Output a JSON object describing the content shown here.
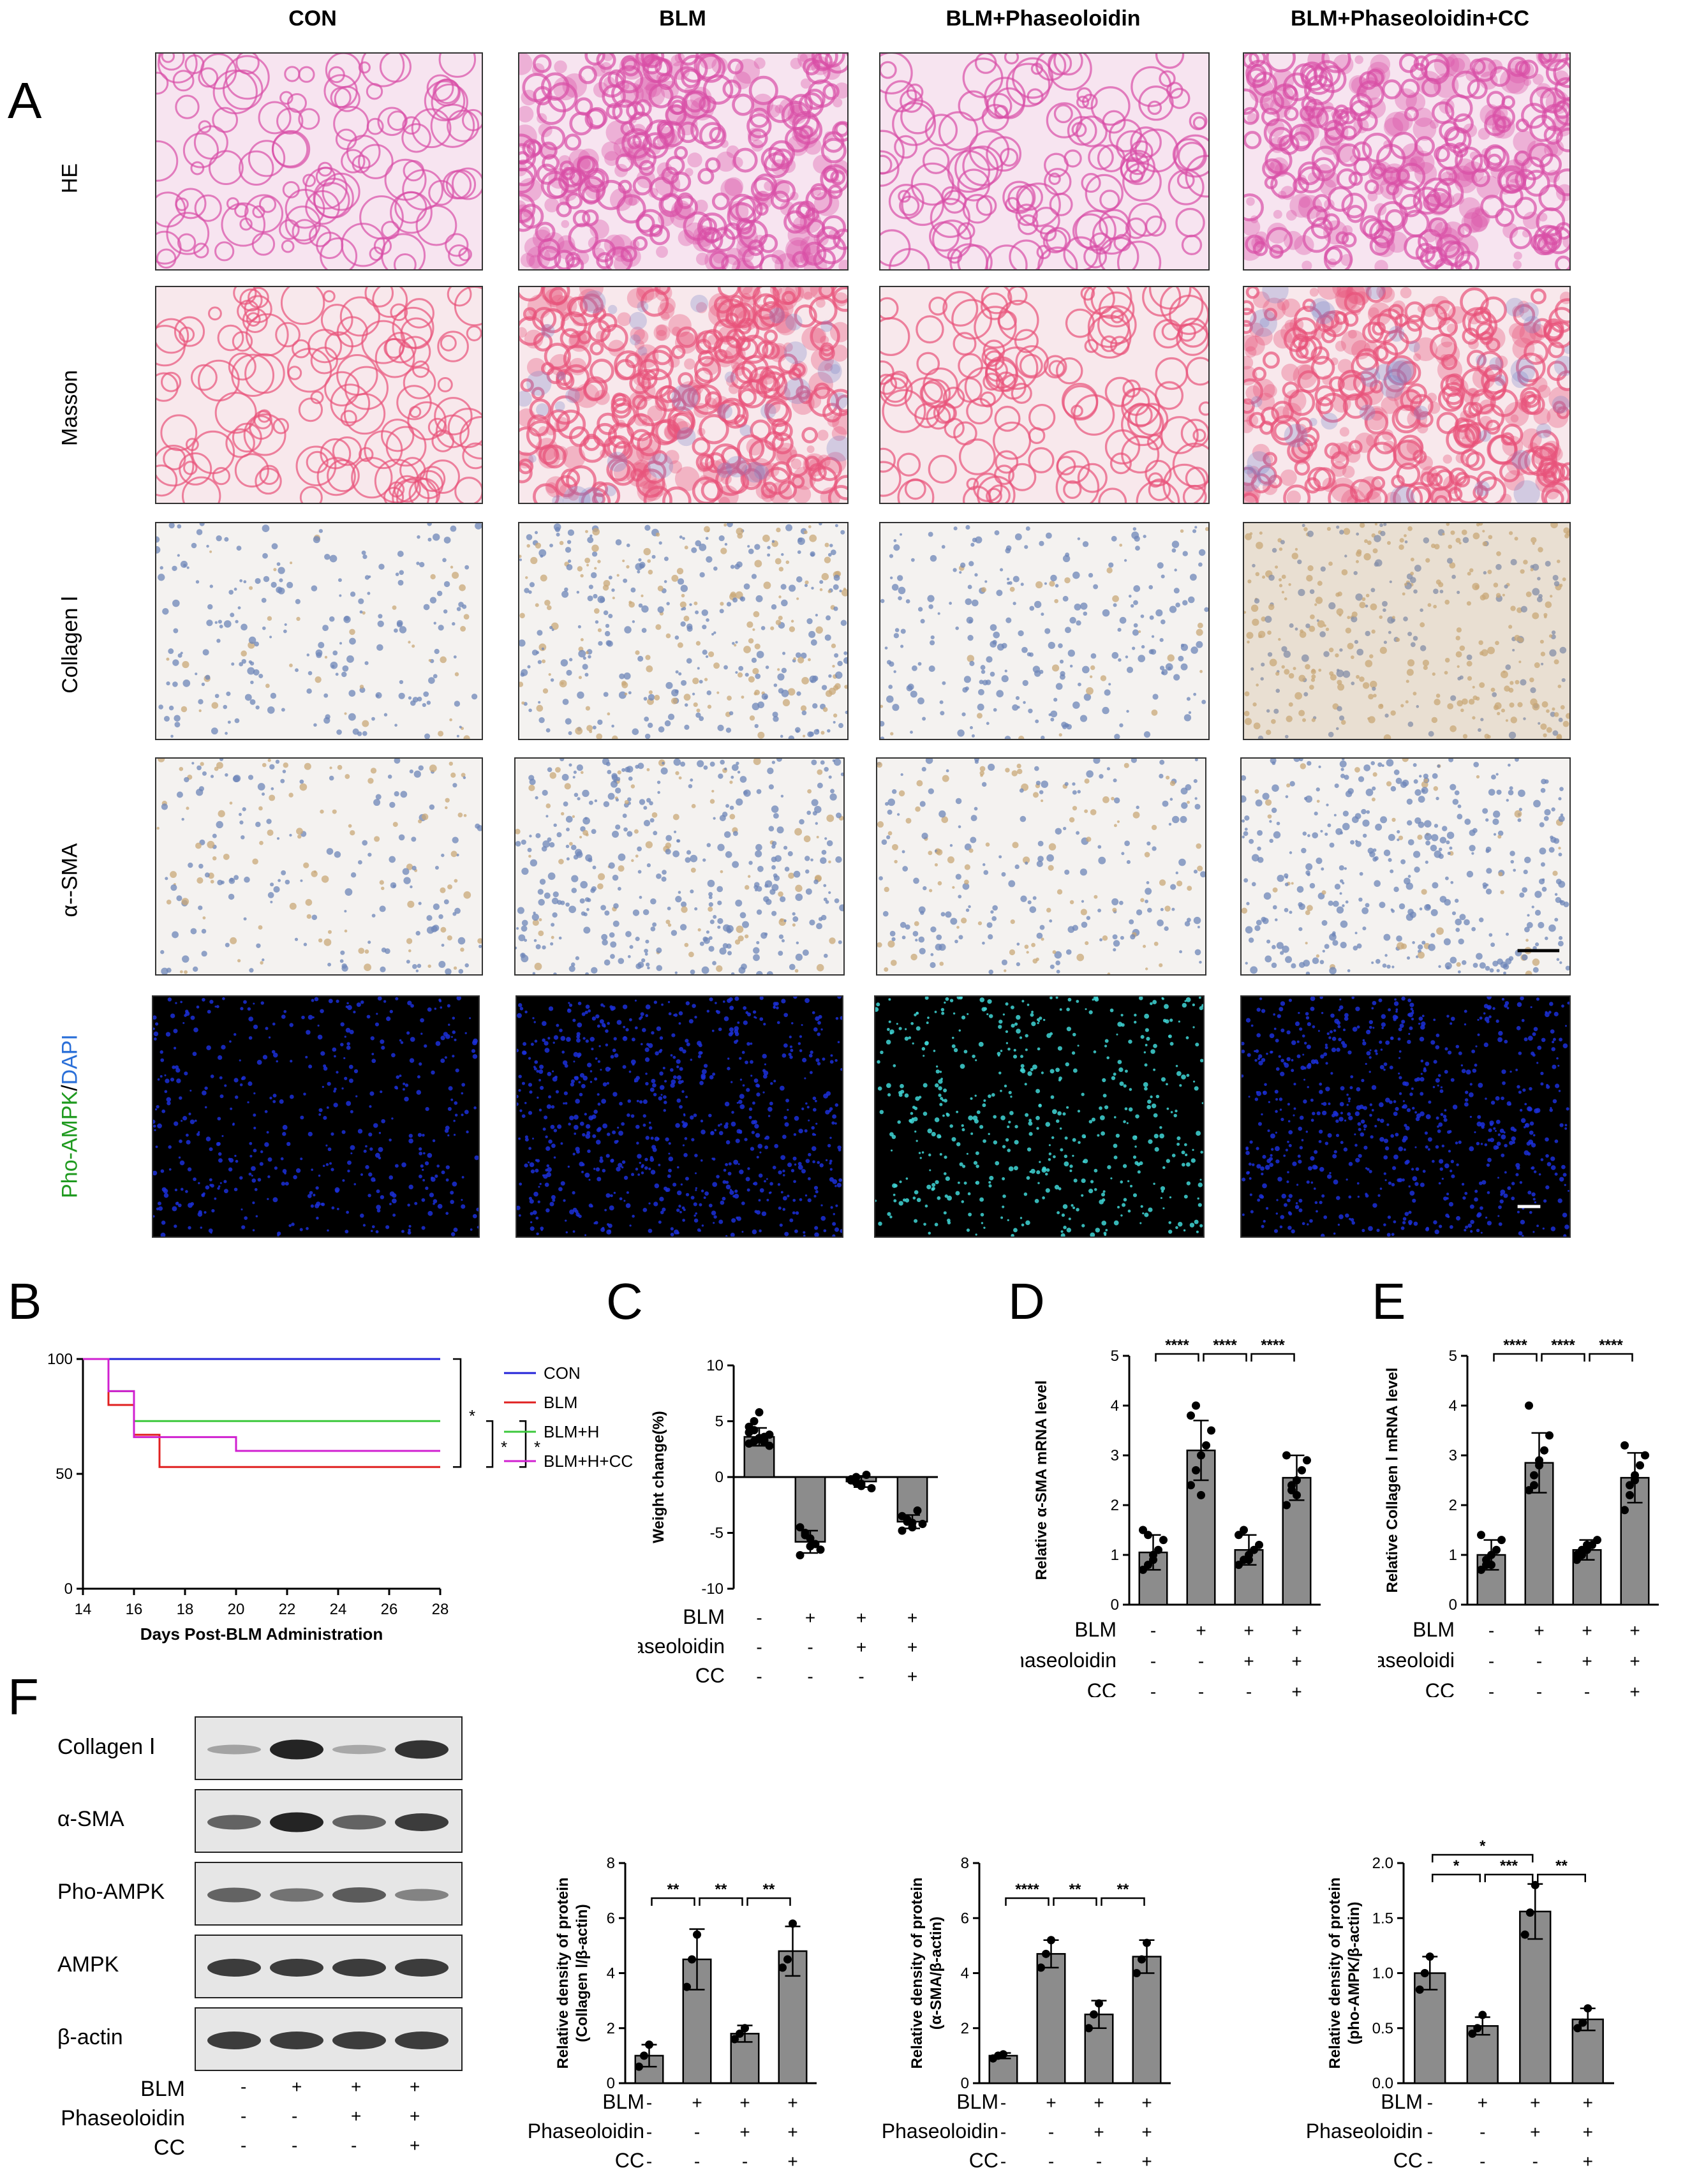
{
  "panelA": {
    "letter": "A",
    "columns": [
      "CON",
      "BLM",
      "BLM+Phaseoloidin",
      "BLM+Phaseoloidin+CC"
    ],
    "rows": [
      "HE",
      "Masson",
      "Collagen Ⅰ",
      "α--SMA"
    ],
    "fluor_label_green": "Pho-AMPK",
    "fluor_label_sep": "/",
    "fluor_label_blue": "DAPI",
    "colors": {
      "he_bg": "#f7e4f0",
      "he_tissue": "#d94fa6",
      "masson_bg": "#f8e8ec",
      "masson_tissue": "#e8537a",
      "masson_blue": "#7a86c6",
      "ihc_bg": "#f4f2f0",
      "ihc_nuclei": "#6d86b8",
      "ihc_brown": "#c9a878",
      "fluor_bg": "#000000",
      "fluor_blue": "#1b2fd8",
      "fluor_cyan": "#3fd6d6"
    }
  },
  "panelB": {
    "letter": "B",
    "xlabel": "Days Post-BLM Administration",
    "xticks": [
      "14",
      "16",
      "18",
      "20",
      "22",
      "24",
      "26",
      "28"
    ],
    "yticks": [
      "0",
      "50",
      "100"
    ],
    "xlim": [
      14,
      28
    ],
    "ylim": [
      0,
      100
    ],
    "legend": [
      {
        "name": "CON",
        "color": "#2323d8"
      },
      {
        "name": "BLM",
        "color": "#e02020"
      },
      {
        "name": "BLM+H",
        "color": "#3cc83c"
      },
      {
        "name": "BLM+H+CC",
        "color": "#d020d0"
      }
    ],
    "sig": [
      "*",
      "*",
      "*"
    ]
  },
  "panelC": {
    "letter": "C",
    "ylabel": "Weight change(%)",
    "yticks": [
      "-10",
      "-5",
      "0",
      "5",
      "10"
    ]
  },
  "panelD": {
    "letter": "D",
    "ylabel": "Relative α-SMA mRNA level",
    "yticks": [
      "0",
      "1",
      "2",
      "3",
      "4",
      "5"
    ],
    "sig": [
      "****",
      "****",
      "****"
    ]
  },
  "panelE": {
    "letter": "E",
    "ylabel": "Relative Collagen Ⅰ mRNA level",
    "yticks": [
      "0",
      "1",
      "2",
      "3",
      "4",
      "5"
    ],
    "sig": [
      "****",
      "****",
      "****"
    ]
  },
  "treatments": {
    "C": {
      "rows": [
        {
          "label": "BLM",
          "marks": [
            "-",
            "+",
            "+",
            "+"
          ]
        },
        {
          "label": "Phaseoloidin",
          "marks": [
            "-",
            "-",
            "+",
            "+"
          ]
        },
        {
          "label": "CC",
          "marks": [
            "-",
            "-",
            "-",
            "+"
          ]
        }
      ]
    },
    "D": {
      "rows": [
        {
          "label": "BLM",
          "marks": [
            "-",
            "+",
            "+",
            "+"
          ]
        },
        {
          "label": "Phaseoloidin",
          "marks": [
            "-",
            "-",
            "+",
            "+"
          ]
        },
        {
          "label": "CC",
          "marks": [
            "-",
            "-",
            "-",
            "+"
          ]
        }
      ]
    },
    "E": {
      "rows": [
        {
          "label": "BLM",
          "marks": [
            "-",
            "+",
            "+",
            "+"
          ]
        },
        {
          "label": "Phaseoloidi",
          "marks": [
            "-",
            "-",
            "+",
            "+"
          ]
        },
        {
          "label": "CC",
          "marks": [
            "-",
            "-",
            "-",
            "+"
          ]
        }
      ]
    },
    "F": {
      "rows": [
        {
          "label": "BLM",
          "marks": [
            "-",
            "+",
            "+",
            "+"
          ]
        },
        {
          "label": "Phaseoloidin",
          "marks": [
            "-",
            "-",
            "+",
            "+"
          ]
        },
        {
          "label": "CC",
          "marks": [
            "-",
            "-",
            "-",
            "+"
          ]
        }
      ]
    },
    "F1": {
      "rows": [
        {
          "label": "BLM",
          "marks": [
            "-",
            "+",
            "+",
            "+"
          ]
        },
        {
          "label": "Phaseoloidin",
          "marks": [
            "-",
            "-",
            "+",
            "+"
          ]
        },
        {
          "label": "CC",
          "marks": [
            "-",
            "-",
            "-",
            "+"
          ]
        }
      ]
    },
    "F2": {
      "rows": [
        {
          "label": "BLM",
          "marks": [
            "-",
            "+",
            "+",
            "+"
          ]
        },
        {
          "label": "Phaseoloidin",
          "marks": [
            "-",
            "-",
            "+",
            "+"
          ]
        },
        {
          "label": "CC",
          "marks": [
            "-",
            "-",
            "-",
            "+"
          ]
        }
      ]
    },
    "F3": {
      "rows": [
        {
          "label": "BLM",
          "marks": [
            "-",
            "+",
            "+",
            "+"
          ]
        },
        {
          "label": "Phaseoloidin",
          "marks": [
            "-",
            "-",
            "+",
            "+"
          ]
        },
        {
          "label": "CC",
          "marks": [
            "-",
            "-",
            "-",
            "+"
          ]
        }
      ]
    }
  },
  "panelF": {
    "letter": "F",
    "blots": [
      {
        "label": "Collagen Ⅰ",
        "bands": [
          0.15,
          0.95,
          0.12,
          0.85
        ]
      },
      {
        "label": "α-SMA",
        "bands": [
          0.55,
          0.95,
          0.55,
          0.8
        ]
      },
      {
        "label": "Pho-AMPK",
        "bands": [
          0.55,
          0.45,
          0.6,
          0.35
        ]
      },
      {
        "label": "AMPK",
        "bands": [
          0.8,
          0.8,
          0.8,
          0.8
        ]
      },
      {
        "label": "β-actin",
        "bands": [
          0.8,
          0.8,
          0.8,
          0.8
        ]
      }
    ],
    "f1": {
      "ylabel1": "Relative density of protein",
      "ylabel2": "(Collagen Ⅰ/β-actin)",
      "yticks": [
        "0",
        "2",
        "4",
        "6",
        "8"
      ],
      "sig": [
        "**",
        "**",
        "**"
      ]
    },
    "f2": {
      "ylabel1": "Relative density of protein",
      "ylabel2": "(α-SMA/β-actin)",
      "yticks": [
        "0",
        "2",
        "4",
        "6",
        "8"
      ],
      "sig": [
        "****",
        "**",
        "**"
      ]
    },
    "f3": {
      "ylabel1": "Relative density of protein",
      "ylabel2": "(pho-AMPK/β-actin)",
      "yticks": [
        "0.0",
        "0.5",
        "1.0",
        "1.5",
        "2.0"
      ],
      "sig": [
        "*",
        "*",
        "***",
        "**"
      ]
    }
  },
  "chart_data": [
    {
      "type": "line",
      "xlabel": "Days Post-BLM Administration",
      "xlim": [
        14,
        28
      ],
      "ylim": [
        0,
        100
      ],
      "series": [
        {
          "name": "CON",
          "x": [
            14,
            28
          ],
          "y": [
            100,
            100
          ]
        },
        {
          "name": "BLM",
          "x": [
            14,
            15,
            15,
            16,
            16,
            17,
            17,
            28
          ],
          "y": [
            100,
            100,
            80,
            80,
            67,
            67,
            53,
            53
          ]
        },
        {
          "name": "BLM+H",
          "x": [
            14,
            15,
            15,
            16,
            16,
            28
          ],
          "y": [
            100,
            100,
            86,
            86,
            73,
            73
          ]
        },
        {
          "name": "BLM+H+CC",
          "x": [
            14,
            15,
            15,
            16,
            16,
            20,
            20,
            28
          ],
          "y": [
            100,
            100,
            86,
            86,
            66,
            66,
            60,
            60
          ]
        }
      ]
    },
    {
      "type": "bar",
      "ylabel": "Weight change(%)",
      "ylim": [
        -10,
        10
      ],
      "categories": [
        "1",
        "2",
        "3",
        "4"
      ],
      "values": [
        3.6,
        -5.8,
        -0.4,
        -4.0
      ],
      "errors": [
        0.8,
        1.0,
        0.5,
        0.6
      ],
      "points": [
        [
          3.0,
          3.2,
          3.4,
          3.6,
          3.8,
          4.0,
          4.2,
          3.5,
          3.1,
          2.8,
          4.5,
          5.0,
          5.8,
          3.3
        ],
        [
          -4.5,
          -5.0,
          -5.5,
          -6.0,
          -6.5,
          -7.0,
          -5.2,
          -6.2
        ],
        [
          -0.2,
          -0.5,
          -0.8,
          0.2,
          -1.0,
          -0.3,
          0.0,
          -0.6
        ],
        [
          -3.5,
          -4.0,
          -4.5,
          -3.0,
          -4.2,
          -4.8,
          -3.8,
          -4.1
        ]
      ]
    },
    {
      "type": "bar",
      "ylabel": "Relative α-SMA mRNA level",
      "ylim": [
        0,
        5
      ],
      "categories": [
        "1",
        "2",
        "3",
        "4"
      ],
      "values": [
        1.05,
        3.1,
        1.1,
        2.55
      ],
      "errors": [
        0.35,
        0.6,
        0.3,
        0.45
      ],
      "points": [
        [
          0.7,
          0.8,
          1.0,
          1.1,
          1.3,
          1.5,
          1.4,
          0.9
        ],
        [
          2.4,
          2.7,
          3.0,
          3.2,
          3.5,
          3.8,
          4.0,
          2.2
        ],
        [
          0.8,
          0.9,
          1.0,
          1.1,
          1.2,
          1.4,
          1.5,
          0.9
        ],
        [
          2.0,
          2.3,
          2.5,
          2.7,
          2.9,
          3.0,
          2.4,
          2.2
        ]
      ]
    },
    {
      "type": "bar",
      "ylabel": "Relative Collagen Ⅰ mRNA level",
      "ylim": [
        0,
        5
      ],
      "categories": [
        "1",
        "2",
        "3",
        "4"
      ],
      "values": [
        1.0,
        2.85,
        1.1,
        2.55
      ],
      "errors": [
        0.3,
        0.6,
        0.2,
        0.5
      ],
      "points": [
        [
          0.7,
          0.8,
          1.0,
          1.1,
          1.3,
          1.4,
          0.9,
          0.8
        ],
        [
          2.3,
          2.6,
          2.9,
          3.1,
          3.4,
          4.0,
          2.4,
          2.8
        ],
        [
          0.9,
          1.0,
          1.1,
          1.2,
          1.3,
          1.0,
          1.1,
          1.2
        ],
        [
          1.9,
          2.2,
          2.5,
          2.8,
          3.0,
          3.2,
          2.4,
          2.6
        ]
      ]
    },
    {
      "type": "bar",
      "ylabel": "Relative density of protein (Collagen Ⅰ/β-actin)",
      "ylim": [
        0,
        8
      ],
      "categories": [
        "1",
        "2",
        "3",
        "4"
      ],
      "values": [
        1.0,
        4.5,
        1.8,
        4.8
      ],
      "errors": [
        0.4,
        1.1,
        0.3,
        0.9
      ],
      "points": [
        [
          0.6,
          1.0,
          1.4
        ],
        [
          3.5,
          4.5,
          5.4
        ],
        [
          1.6,
          1.8,
          2.0
        ],
        [
          4.2,
          4.5,
          5.8
        ]
      ]
    },
    {
      "type": "bar",
      "ylabel": "Relative density of protein (α-SMA/β-actin)",
      "ylim": [
        0,
        8
      ],
      "categories": [
        "1",
        "2",
        "3",
        "4"
      ],
      "values": [
        1.0,
        4.7,
        2.5,
        4.6
      ],
      "errors": [
        0.1,
        0.5,
        0.5,
        0.6
      ],
      "points": [
        [
          0.9,
          1.0,
          1.05
        ],
        [
          4.2,
          4.7,
          5.2
        ],
        [
          2.0,
          2.5,
          2.9
        ],
        [
          4.0,
          4.5,
          5.1
        ]
      ]
    },
    {
      "type": "bar",
      "ylabel": "Relative density of protein (pho-AMPK/β-actin)",
      "ylim": [
        0,
        2
      ],
      "categories": [
        "1",
        "2",
        "3",
        "4"
      ],
      "values": [
        1.0,
        0.52,
        1.56,
        0.58
      ],
      "errors": [
        0.15,
        0.08,
        0.25,
        0.1
      ],
      "points": [
        [
          0.85,
          1.0,
          1.15
        ],
        [
          0.45,
          0.5,
          0.62
        ],
        [
          1.35,
          1.55,
          1.8
        ],
        [
          0.5,
          0.55,
          0.68
        ]
      ]
    }
  ]
}
